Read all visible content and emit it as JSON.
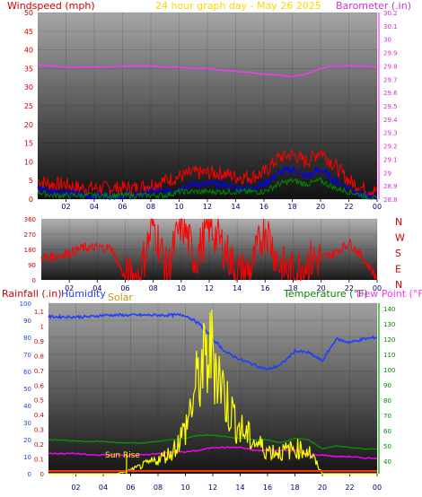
{
  "header": {
    "left_title": "Windspeed (mph)",
    "center_title": "24 hour graph day - May 26 2025",
    "right_title": "Barometer (.in)"
  },
  "bottom_header": {
    "rainfall": "Rainfall (.in)",
    "humidity": "Humidity",
    "solar": "Solar",
    "temperature": "Temperature (°F)",
    "dewpoint": "Dew Point (°F)"
  },
  "annotation": "Sun Rise",
  "colors": {
    "wind_title": "#cc0000",
    "center_title": "#ffd400",
    "barometer": "#ff33ff",
    "windspeed": "#ff0000",
    "gust": "#0000ff",
    "wind_avg": "#008800",
    "direction": "#ff0000",
    "humidity": "#1f3fff",
    "solar": "#ffff00",
    "temperature": "#00a000",
    "dewpoint": "#ff00ff",
    "rain": "#ff3300"
  },
  "x_ticks": [
    "02",
    "04",
    "06",
    "08",
    "10",
    "12",
    "14",
    "16",
    "18",
    "20",
    "22",
    "00"
  ],
  "chart_data": [
    {
      "type": "line",
      "title": "24 hour graph day - May 26 2025",
      "ylabel": "Windspeed (mph)",
      "y2label": "Barometer (.in)",
      "ylim": [
        0,
        50
      ],
      "y_ticks": [
        "0",
        "5",
        "10",
        "15",
        "20",
        "25",
        "30",
        "35",
        "40",
        "45",
        "50"
      ],
      "y2lim": [
        28.8,
        30.2
      ],
      "y2_ticks": [
        "28.8",
        "28.9",
        "29",
        "29.1",
        "29.2",
        "29.3",
        "29.4",
        "29.5",
        "29.6",
        "29.7",
        "29.8",
        "29.9",
        "30",
        "30.1",
        "30.2"
      ],
      "x_hours": [
        0,
        1,
        2,
        3,
        4,
        5,
        6,
        7,
        8,
        9,
        10,
        11,
        12,
        13,
        14,
        15,
        16,
        17,
        18,
        19,
        20,
        21,
        22,
        23,
        24
      ],
      "series": [
        {
          "name": "Windspeed",
          "values": [
            5,
            4,
            4,
            3,
            3,
            3,
            3,
            3,
            4,
            5,
            6,
            7,
            7,
            7,
            6,
            6,
            7,
            11,
            12,
            10,
            13,
            9,
            5,
            3,
            2
          ]
        },
        {
          "name": "Gust",
          "values": [
            3,
            2,
            2,
            1,
            1,
            1,
            1,
            1,
            2,
            2,
            3,
            4,
            4,
            4,
            3,
            3,
            4,
            7,
            8,
            6,
            8,
            5,
            3,
            1,
            0
          ]
        },
        {
          "name": "Average",
          "values": [
            2,
            1,
            1,
            1,
            1,
            1,
            1,
            1,
            1,
            1,
            2,
            2,
            2,
            2,
            2,
            2,
            2,
            4,
            5,
            4,
            5,
            3,
            2,
            1,
            0
          ]
        },
        {
          "name": "Barometer",
          "values": [
            29.81,
            29.8,
            29.79,
            29.79,
            29.79,
            29.79,
            29.8,
            29.8,
            29.8,
            29.79,
            29.79,
            29.78,
            29.78,
            29.77,
            29.76,
            29.75,
            29.74,
            29.73,
            29.72,
            29.74,
            29.78,
            29.8,
            29.8,
            29.8,
            29.79
          ]
        }
      ]
    },
    {
      "type": "line",
      "ylim": [
        0,
        360
      ],
      "y_ticks": [
        "0",
        "90",
        "180",
        "270",
        "360"
      ],
      "compass": [
        "N",
        "W",
        "S",
        "E",
        "N"
      ],
      "x_hours": [
        0,
        1,
        2,
        3,
        4,
        5,
        6,
        7,
        8,
        9,
        10,
        11,
        12,
        13,
        14,
        15,
        16,
        17,
        18,
        19,
        20,
        21,
        22,
        23,
        24
      ],
      "series": [
        {
          "name": "Wind Direction",
          "values": [
            130,
            140,
            160,
            190,
            190,
            190,
            10,
            20,
            340,
            40,
            350,
            120,
            320,
            200,
            40,
            60,
            320,
            90,
            40,
            110,
            130,
            160,
            220,
            130,
            10
          ]
        }
      ]
    },
    {
      "type": "line",
      "ylabel": "Rainfall (.in)",
      "y2label": "Temperature (°F)",
      "y_ticks_rain": [
        "0",
        "0.1",
        "0.2",
        "0.3",
        "0.4",
        "0.5",
        "0.6",
        "0.7",
        "0.8",
        "0.9",
        "1",
        "1.1"
      ],
      "y_ticks_pct": [
        "0",
        "10",
        "20",
        "30",
        "40",
        "50",
        "60",
        "70",
        "80",
        "90",
        "100"
      ],
      "y2_ticks": [
        "40",
        "50",
        "60",
        "70",
        "80",
        "90",
        "100",
        "110",
        "120",
        "130",
        "140"
      ],
      "x_hours": [
        0,
        1,
        2,
        3,
        4,
        5,
        6,
        7,
        8,
        9,
        10,
        11,
        12,
        13,
        14,
        15,
        16,
        17,
        18,
        19,
        20,
        21,
        22,
        23,
        24
      ],
      "series": [
        {
          "name": "Humidity",
          "values": [
            92,
            92,
            92,
            92,
            93,
            93,
            93,
            93,
            93,
            93,
            93,
            88,
            79,
            71,
            67,
            64,
            61,
            64,
            72,
            71,
            66,
            79,
            77,
            79,
            80
          ]
        },
        {
          "name": "Solar",
          "values": [
            0,
            0,
            0,
            0,
            0,
            0,
            2,
            5,
            8,
            12,
            25,
            55,
            70,
            40,
            25,
            18,
            13,
            12,
            14,
            13,
            0,
            0,
            0,
            0,
            0
          ]
        },
        {
          "name": "Temperature",
          "values": [
            54,
            54,
            53,
            53,
            53,
            52,
            52,
            52,
            53,
            54,
            55,
            57,
            57,
            56,
            55,
            54,
            54,
            52,
            55,
            54,
            48,
            50,
            49,
            48,
            48
          ]
        },
        {
          "name": "Dew Point",
          "values": [
            45,
            45,
            45,
            44,
            44,
            44,
            44,
            44,
            45,
            46,
            46,
            47,
            49,
            49,
            49,
            47,
            47,
            47,
            47,
            44,
            44,
            43,
            43,
            42,
            42
          ]
        },
        {
          "name": "Rainfall",
          "values": [
            0,
            0,
            0,
            0,
            0,
            0,
            0,
            0,
            0,
            0,
            0,
            0,
            0,
            0,
            0,
            0,
            0,
            0,
            0,
            0,
            0,
            0,
            0,
            0,
            0
          ]
        }
      ]
    }
  ]
}
